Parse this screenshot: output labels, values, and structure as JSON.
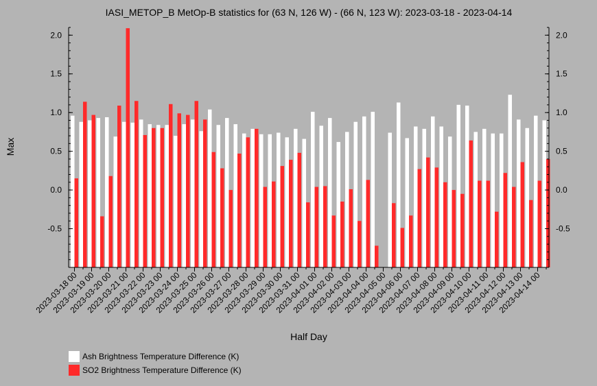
{
  "chart_data": {
    "type": "bar",
    "title": "IASI_METOP_B MetOp-B statistics for (63 N, 126 W) - (66 N, 123 W): 2023-03-18 - 2023-04-14",
    "xlabel": "Half Day",
    "ylabel": "Max",
    "ylim": [
      -1.0,
      2.1
    ],
    "yticks": [
      -0.5,
      0.0,
      0.5,
      1.0,
      1.5,
      2.0
    ],
    "ytick_labels": [
      "-0.5",
      "0.0",
      "0.5",
      "1.0",
      "1.5",
      "2.0"
    ],
    "grid": false,
    "legend_position": "bottom-left",
    "tick_labels": [
      "2023-03-18 00",
      "2023-03-19 00",
      "2023-03-20 00",
      "2023-03-21 00",
      "2023-03-22 00",
      "2023-03-23 00",
      "2023-03-24 00",
      "2023-03-25 00",
      "2023-03-26 00",
      "2023-03-27 00",
      "2023-03-28 00",
      "2023-03-29 00",
      "2023-03-30 00",
      "2023-03-31 00",
      "2023-04-01 00",
      "2023-04-02 00",
      "2023-04-03 00",
      "2023-04-04 00",
      "2023-04-05 00",
      "2023-04-06 00",
      "2023-04-07 00",
      "2023-04-08 00",
      "2023-04-09 00",
      "2023-04-10 00",
      "2023-04-11 00",
      "2023-04-12 00",
      "2023-04-13 00",
      "2023-04-14 00"
    ],
    "series": [
      {
        "name": "Ash Brightness Temperature Difference (K)",
        "color": "#ffffff",
        "values": [
          0.96,
          0.88,
          0.9,
          0.93,
          0.94,
          0.69,
          0.88,
          0.87,
          0.91,
          0.85,
          0.84,
          0.84,
          0.7,
          0.85,
          0.91,
          0.76,
          1.04,
          0.84,
          0.93,
          0.85,
          0.73,
          0.79,
          0.72,
          0.72,
          0.74,
          0.68,
          0.79,
          0.66,
          1.01,
          0.83,
          0.93,
          0.62,
          0.75,
          0.88,
          0.95,
          1.01,
          null,
          0.74,
          1.13,
          0.67,
          0.82,
          0.79,
          0.95,
          0.82,
          0.69,
          1.1,
          1.09,
          0.75,
          0.79,
          0.73,
          0.73,
          1.23,
          0.91,
          0.8,
          0.96,
          0.9
        ]
      },
      {
        "name": "SO2 Brightness Temperature Difference (K)",
        "color": "#ff2a2a",
        "values": [
          0.15,
          1.14,
          0.97,
          -0.34,
          0.18,
          1.09,
          2.09,
          1.15,
          0.71,
          0.8,
          0.8,
          1.11,
          0.99,
          0.97,
          1.15,
          0.91,
          0.49,
          0.28,
          0.0,
          0.47,
          0.68,
          0.79,
          0.04,
          0.11,
          0.31,
          0.39,
          0.48,
          -0.16,
          0.04,
          0.05,
          -0.33,
          -0.15,
          0.01,
          -0.4,
          0.13,
          -0.72,
          null,
          -0.17,
          -0.49,
          -0.33,
          0.27,
          0.42,
          0.29,
          0.1,
          0.0,
          -0.05,
          0.64,
          0.12,
          0.12,
          -0.28,
          0.22,
          0.04,
          0.36,
          -0.13,
          0.12,
          0.4
        ]
      }
    ]
  }
}
